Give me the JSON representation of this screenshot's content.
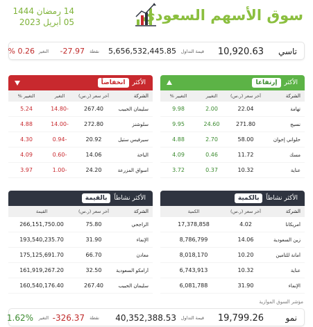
{
  "header": {
    "title": "سوق الأسهم السعودي",
    "date_hijri": "14 رمضان 1444",
    "date_greg": "05 أبريل 2023"
  },
  "tasi": {
    "name": "تاسي",
    "value": "10,920.63",
    "turnover_label": "قيمة التداول",
    "turnover": "5,656,532,445.85",
    "change_label": "نقطة",
    "change": "27.97-",
    "pct_label": "التغير",
    "pct": "0.26 %"
  },
  "gainers": {
    "prefix": "الأكثر",
    "title": "إرتفاعا",
    "cols": [
      "الشركة",
      "آخر سعر (ر.س)",
      "التغيير",
      "التغيير %"
    ],
    "rows": [
      {
        "name": "تهامة",
        "price": "22.04",
        "change": "2.00",
        "pct": "9.98"
      },
      {
        "name": "نسيج",
        "price": "271.80",
        "change": "24.60",
        "pct": "9.95"
      },
      {
        "name": "حلواني إخوان",
        "price": "58.00",
        "change": "2.70",
        "pct": "4.88"
      },
      {
        "name": "مسك",
        "price": "11.72",
        "change": "0.46",
        "pct": "4.09"
      },
      {
        "name": "عناية",
        "price": "10.32",
        "change": "0.37",
        "pct": "3.72"
      }
    ]
  },
  "losers": {
    "prefix": "الأكثر",
    "title": "انخفاضاً",
    "cols": [
      "الشركة",
      "آخر سعر (ر.س)",
      "التغير",
      "التغيير %"
    ],
    "rows": [
      {
        "name": "سليمان الحبيب",
        "price": "267.40",
        "change": "-14.80",
        "pct": "5.24"
      },
      {
        "name": "سلوشنز",
        "price": "272.80",
        "change": "-14.00",
        "pct": "4.88"
      },
      {
        "name": "سيرفيس ستيل",
        "price": "20.92",
        "change": "-0.94",
        "pct": "4.30"
      },
      {
        "name": "الباحة",
        "price": "14.06",
        "change": "-0.60",
        "pct": "4.09"
      },
      {
        "name": "أسواق المزرعة",
        "price": "24.20",
        "change": "-1.00",
        "pct": "3.97"
      }
    ]
  },
  "by_value": {
    "prefix": "الأكثر نشاطاً",
    "title": "بالقيمة",
    "cols": [
      "الشركة",
      "آخر سعر (ر.س)",
      "القيمة"
    ],
    "rows": [
      {
        "name": "الراجحي",
        "price": "75.80",
        "value": "266,151,750.00"
      },
      {
        "name": "الإنماء",
        "price": "31.90",
        "value": "193,540,235.70"
      },
      {
        "name": "معادن",
        "price": "66.70",
        "value": "175,125,691.70"
      },
      {
        "name": "أرامكو السعودية",
        "price": "32.50",
        "value": "161,919,267.20"
      },
      {
        "name": "سليمان الحبيب",
        "price": "267.40",
        "value": "160,540,176.40"
      }
    ]
  },
  "by_qty": {
    "prefix": "الأكثر نشاطاً",
    "title": "بالكمية",
    "cols": [
      "الشركة",
      "آخر سعر (ر.س)",
      "الكمية"
    ],
    "rows": [
      {
        "name": "أمريكانا",
        "price": "4.02",
        "value": "17,378,858"
      },
      {
        "name": "زين السعودية",
        "price": "14.06",
        "value": "8,786,799"
      },
      {
        "name": "أمانة للتأمين",
        "price": "10.20",
        "value": "8,018,170"
      },
      {
        "name": "عناية",
        "price": "10.32",
        "value": "6,743,913"
      },
      {
        "name": "الإنماء",
        "price": "31.90",
        "value": "6,081,788"
      }
    ]
  },
  "nomu": {
    "note": "مؤشر السوق الموازية",
    "name": "نمو",
    "value": "19,799.26",
    "turnover_label": "قيمة التداول",
    "turnover": "40,352,388.53",
    "change_label": "نقطة",
    "change": "326.37-",
    "pct_label": "التغير",
    "pct": "1.62%"
  },
  "colors": {
    "green": "#5cb346",
    "red": "#c8292e",
    "dark": "#2f3440",
    "title": "#8bbf3f"
  }
}
